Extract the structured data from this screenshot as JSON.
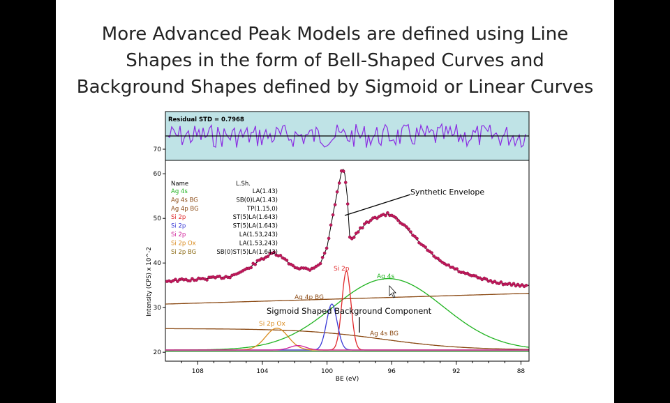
{
  "slide": {
    "title_lines": [
      "More Advanced Peak Models are defined using Line",
      "Shapes in the form of Bell-Shaped Curves and",
      "Background Shapes defined by Sigmoid or Linear Curves"
    ]
  },
  "chart_data": {
    "type": "line",
    "xlabel": "BE (eV)",
    "ylabel": "Intensity (CPS) x 10^-2",
    "x_reversed": true,
    "xlim": [
      110,
      87.5
    ],
    "ylim": [
      18,
      63
    ],
    "x_ticks": [
      108,
      104,
      100,
      96,
      92,
      88
    ],
    "y_ticks": [
      20,
      30,
      40,
      50,
      60
    ],
    "residual": {
      "label": "Residual STD = 0.7968",
      "y_tick": 70,
      "background": "#bfe3e6",
      "line_color": "#8a2be2",
      "seed": 7
    },
    "table_header": {
      "name": "Name",
      "shape": "L.Sh."
    },
    "components": [
      {
        "name": "Ag 4s",
        "shape": "LA(1.43)",
        "color": "#1fb31f"
      },
      {
        "name": "Ag 4s BG",
        "shape": "SB(0)LA(1.43)",
        "color": "#8b4a14"
      },
      {
        "name": "Ag 4p BG",
        "shape": "TP(1.15,0)",
        "color": "#8b4a14"
      },
      {
        "name": "Si 2p",
        "shape": "ST(5)LA(1.643)",
        "color": "#e0282a"
      },
      {
        "name": "Si 2p",
        "shape": "ST(5)LA(1.643)",
        "color": "#3a3ad6"
      },
      {
        "name": "Si 2p",
        "shape": "LA(1.53,243)",
        "color": "#d0209a"
      },
      {
        "name": "Si 2p Ox",
        "shape": "LA(1.53,243)",
        "color": "#d98a1c"
      },
      {
        "name": "Si 2p BG",
        "shape": "SB(0)ST(5)LA(1.643)",
        "color": "#8b6a14"
      }
    ],
    "series": [
      {
        "name": "Ag 4s",
        "type": "gaussian",
        "center": 96.2,
        "height": 36.5,
        "width": 3.4,
        "base": 20.5,
        "color": "#1fb31f"
      },
      {
        "name": "Ag 4s BG",
        "type": "sigmoid",
        "left": 25.3,
        "right": 20.5,
        "center": 96.5,
        "width": 2.5,
        "color": "#8b4a14"
      },
      {
        "name": "Ag 4p BG",
        "type": "linear",
        "x": [
          110,
          87.5
        ],
        "y": [
          30.8,
          33.2
        ],
        "color": "#8b4a14"
      },
      {
        "name": "Si 2p",
        "type": "gaussian",
        "center": 98.8,
        "height": 38.2,
        "width": 0.28,
        "base": 20.5,
        "color": "#e0282a"
      },
      {
        "name": "Si 2p",
        "type": "gaussian",
        "center": 99.7,
        "height": 30.8,
        "width": 0.33,
        "base": 20.5,
        "color": "#3a3ad6"
      },
      {
        "name": "Si 2p Ox",
        "type": "gaussian",
        "center": 103.1,
        "height": 25.4,
        "width": 0.7,
        "base": 20.5,
        "color": "#d98a1c"
      },
      {
        "name": "Si 2p",
        "type": "gaussian",
        "center": 101.8,
        "height": 21.5,
        "width": 0.5,
        "base": 20.5,
        "color": "#d0209a"
      },
      {
        "name": "Si 2p BG",
        "type": "flat",
        "y": 20.2,
        "color": "#1a7a1a"
      }
    ],
    "envelope": {
      "name": "Synthetic Envelope",
      "color": "#000000",
      "points_color": "#c2185b",
      "x": [
        110,
        108,
        106,
        105,
        104,
        103.3,
        102.8,
        102.3,
        101.8,
        101,
        100.4,
        100,
        99.6,
        99.3,
        99.1,
        99,
        98.9,
        98.75,
        98.6,
        98.4,
        98.1,
        97.6,
        97,
        96.3,
        95.8,
        95.2,
        94.2,
        93,
        91.5,
        90,
        88.5,
        87.5
      ],
      "y": [
        36,
        36.3,
        37,
        38.5,
        41,
        42.2,
        41.3,
        39.8,
        38.9,
        38.6,
        40,
        43.5,
        51.5,
        57,
        60.5,
        61,
        60,
        55,
        46,
        45.5,
        47,
        48.8,
        50.2,
        51,
        50.5,
        48.3,
        44.3,
        40.3,
        37.6,
        36,
        35.1,
        35
      ]
    },
    "annotations": [
      {
        "text": "Synthetic Envelope",
        "color": "#000000"
      },
      {
        "text": "Sigmoid Shaped Background Component",
        "color": "#000000"
      },
      {
        "text": "Si 2p",
        "color": "#e0282a"
      },
      {
        "text": "Ag 4s",
        "color": "#1fb31f"
      },
      {
        "text": "Ag 4p BG",
        "color": "#8b4a14"
      },
      {
        "text": "Si 2p Ox",
        "color": "#d98a1c"
      },
      {
        "text": "Ag 4s BG",
        "color": "#8b4a14"
      }
    ]
  }
}
